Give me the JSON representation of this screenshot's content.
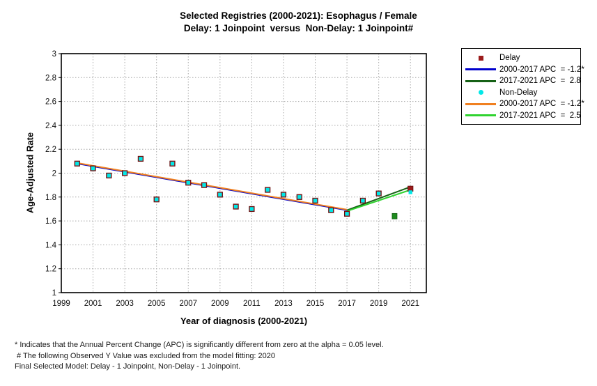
{
  "chart_data": {
    "type": "scatter",
    "title": "Selected Registries (2000-2021): Esophagus / Female",
    "subtitle": "Delay: 1 Joinpoint  versus  Non-Delay: 1 Joinpoint#",
    "xlabel": "Year of diagnosis (2000-2021)",
    "ylabel": "Age-Adjusted Rate",
    "xlim": [
      1999,
      2022
    ],
    "ylim": [
      1,
      3
    ],
    "x_ticks": [
      1999,
      2001,
      2003,
      2005,
      2007,
      2009,
      2011,
      2013,
      2015,
      2017,
      2019,
      2021
    ],
    "x_gridlines": [
      2001,
      2003,
      2005,
      2007,
      2009,
      2011,
      2013,
      2015,
      2017,
      2019,
      2021
    ],
    "y_ticks": [
      {
        "v": 1,
        "label": "1"
      },
      {
        "v": 1.2,
        "label": "1.2"
      },
      {
        "v": 1.4,
        "label": "1.4"
      },
      {
        "v": 1.6,
        "label": "1.6"
      },
      {
        "v": 1.8,
        "label": "1.8"
      },
      {
        "v": 2,
        "label": "2"
      },
      {
        "v": 2.2,
        "label": "2.2"
      },
      {
        "v": 2.4,
        "label": "2.4"
      },
      {
        "v": 2.6,
        "label": "2.6"
      },
      {
        "v": 2.8,
        "label": "2.8"
      },
      {
        "v": 3,
        "label": "3"
      }
    ],
    "grid_color": "#A8A8A8",
    "frame_color": "#000000",
    "marker_colors": {
      "delay": "#9B1B1B",
      "non_delay": "#00E8E8"
    },
    "observed": {
      "years": [
        2000,
        2001,
        2002,
        2003,
        2004,
        2005,
        2006,
        2007,
        2008,
        2009,
        2010,
        2011,
        2012,
        2013,
        2014,
        2015,
        2016,
        2017,
        2018,
        2019,
        2020,
        2021
      ],
      "delay": [
        2.08,
        2.04,
        1.98,
        2.0,
        2.12,
        1.78,
        2.08,
        1.92,
        1.9,
        1.82,
        1.72,
        1.7,
        1.86,
        1.82,
        1.8,
        1.77,
        1.69,
        1.66,
        1.77,
        1.83,
        null,
        1.87
      ],
      "non_delay": [
        2.08,
        2.04,
        1.98,
        2.0,
        2.12,
        1.78,
        2.08,
        1.92,
        1.9,
        1.82,
        1.72,
        1.7,
        1.86,
        1.82,
        1.8,
        1.77,
        1.69,
        1.66,
        1.77,
        1.83,
        null,
        1.84
      ]
    },
    "excluded_point": {
      "year": 2020,
      "value": 1.64,
      "color": "#1E8C1E",
      "note": "Observed Y Value excluded from model fitting"
    },
    "series_fitted": [
      {
        "name": "delay-2000-2017",
        "apc": "-1.2*",
        "x": [
          2000,
          2017
        ],
        "y": [
          2.08,
          1.69
        ],
        "color": "#0000CC"
      },
      {
        "name": "delay-2017-2021",
        "apc": "2.8",
        "x": [
          2017,
          2021
        ],
        "y": [
          1.69,
          1.885
        ],
        "color": "#166116"
      },
      {
        "name": "non-delay-2000-2017",
        "apc": "-1.2*",
        "x": [
          2000,
          2017
        ],
        "y": [
          2.085,
          1.695
        ],
        "color": "#F08020"
      },
      {
        "name": "non-delay-2017-2021",
        "apc": "2.5",
        "x": [
          2017,
          2021
        ],
        "y": [
          1.682,
          1.86
        ],
        "color": "#2FD32F"
      }
    ]
  },
  "legend": {
    "items": [
      {
        "swatch": "square",
        "color": "#9B1B1B",
        "label": "Delay"
      },
      {
        "swatch": "line",
        "color": "#0000CC",
        "label": "2000-2017 APC  = -1.2*"
      },
      {
        "swatch": "line",
        "color": "#166116",
        "label": "2017-2021 APC  =  2.8"
      },
      {
        "swatch": "dot",
        "color": "#00E8E8",
        "label": "Non-Delay"
      },
      {
        "swatch": "line",
        "color": "#F08020",
        "label": "2000-2017 APC  = -1.2*"
      },
      {
        "swatch": "line",
        "color": "#2FD32F",
        "label": "2017-2021 APC  =  2.5"
      }
    ]
  },
  "footnotes": [
    "* Indicates that the Annual Percent Change (APC) is significantly different from zero at the alpha = 0.05 level.",
    " # The following Observed Y Value was excluded from the model fitting: 2020",
    "Final Selected Model: Delay - 1 Joinpoint, Non-Delay - 1 Joinpoint."
  ]
}
